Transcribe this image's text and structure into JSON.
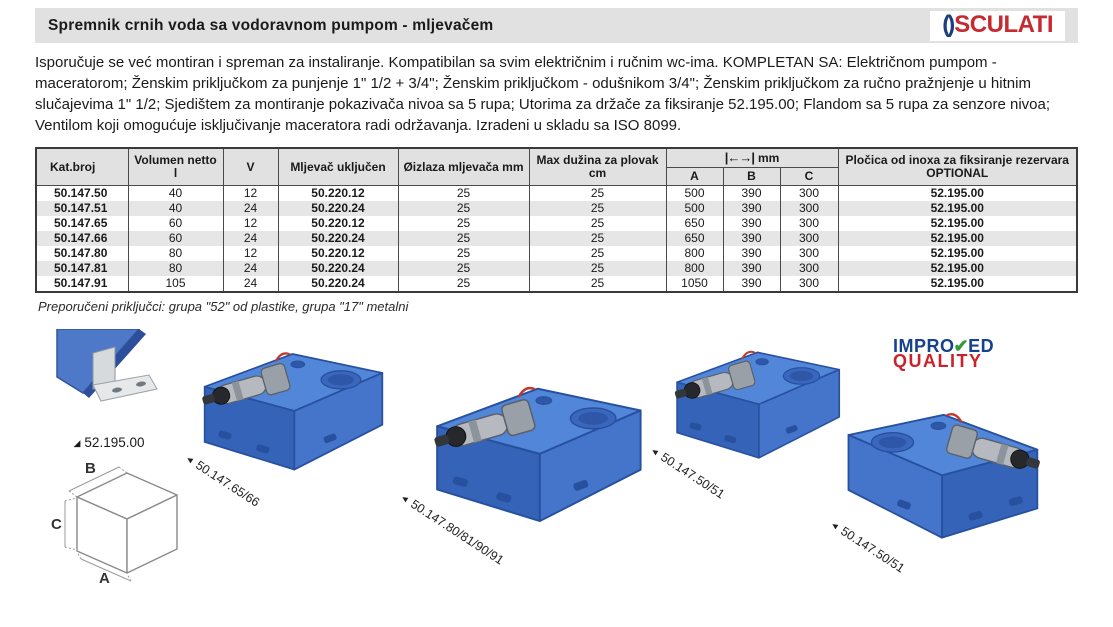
{
  "header": {
    "title": "Spremnik crnih voda sa vodoravnom pumpom - mljevačem",
    "brand": "OSCULATI",
    "brand_mark": {
      "o": "()",
      "rest": "SCULATI"
    }
  },
  "description": "Isporučuje se već montiran i spreman za instaliranje. Kompatibilan sa svim električnim i ručnim wc-ima. KOMPLETAN SA: Električnom pumpom - maceratorom; Ženskim priključkom za punjenje 1\" 1/2 + 3/4\"; Ženskim priključkom - odušnikom 3/4\"; Ženskim priključkom za ručno pražnjenje u hitnim slučajevima 1\" 1/2; Sjedištem za montiranje pokazivača nivoa sa 5 rupa; Utorima za držače za fiksiranje 52.195.00; Flandom sa 5 rupa za senzore nivoa; Ventilom koji omogućuje isključivanje maceratora radi održavanja. Izradeni u skladu sa ISO 8099.",
  "table": {
    "headers": {
      "kat": "Kat.broj",
      "volumen": "Volumen netto l",
      "v": "V",
      "mljevac": "Mljevač uključen",
      "izlaz": "Øizlaza mljevača mm",
      "max_duzina": "Max dužina za plovak cm",
      "dim_icon": "|←→|",
      "dim_unit": "mm",
      "a": "A",
      "b": "B",
      "c": "C",
      "plocica": "Pločica od inoxa za fiksiranje rezervara OPTIONAL"
    },
    "rows": [
      [
        "50.147.50",
        "40",
        "12",
        "50.220.12",
        "25",
        "25",
        "500",
        "390",
        "300",
        "52.195.00"
      ],
      [
        "50.147.51",
        "40",
        "24",
        "50.220.24",
        "25",
        "25",
        "500",
        "390",
        "300",
        "52.195.00"
      ],
      [
        "50.147.65",
        "60",
        "12",
        "50.220.12",
        "25",
        "25",
        "650",
        "390",
        "300",
        "52.195.00"
      ],
      [
        "50.147.66",
        "60",
        "24",
        "50.220.24",
        "25",
        "25",
        "650",
        "390",
        "300",
        "52.195.00"
      ],
      [
        "50.147.80",
        "80",
        "12",
        "50.220.12",
        "25",
        "25",
        "800",
        "390",
        "300",
        "52.195.00"
      ],
      [
        "50.147.81",
        "80",
        "24",
        "50.220.24",
        "25",
        "25",
        "800",
        "390",
        "300",
        "52.195.00"
      ],
      [
        "50.147.91",
        "105",
        "24",
        "50.220.24",
        "25",
        "25",
        "1050",
        "390",
        "300",
        "52.195.00"
      ]
    ]
  },
  "note": "Preporučeni priključci: grupa \"52\" od plastike, grupa \"17\" metalni",
  "gallery": {
    "bracket_pointer": "◢",
    "label_pointer": "◄",
    "bracket_caption": "52.195.00",
    "tank_65_66_caption": "50.147.65/66",
    "tank_80_91_caption": "50.147.80/81/90/91",
    "tank_50_51_caption": "50.147.50/51",
    "tank_50_51_caption_2": "50.147.50/51",
    "diagram": {
      "a": "A",
      "b": "B",
      "c": "C"
    }
  },
  "badge": {
    "improved_pre": "IMPRO",
    "check": "✔",
    "improved_post": "ED",
    "quality": "QUALITY"
  },
  "colors": {
    "brand_navy": "#1d3e7c",
    "brand_red": "#c62a2f",
    "tank_blue": "#3f6fc1",
    "badge_green": "#2f9e37"
  }
}
